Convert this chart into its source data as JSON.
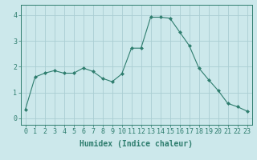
{
  "x": [
    0,
    1,
    2,
    3,
    4,
    5,
    6,
    7,
    8,
    9,
    10,
    11,
    12,
    13,
    14,
    15,
    16,
    17,
    18,
    19,
    20,
    21,
    22,
    23
  ],
  "y": [
    0.35,
    1.6,
    1.75,
    1.85,
    1.75,
    1.75,
    1.95,
    1.82,
    1.55,
    1.42,
    1.72,
    2.72,
    2.72,
    3.92,
    3.92,
    3.88,
    3.35,
    2.82,
    1.95,
    1.5,
    1.08,
    0.58,
    0.45,
    0.28
  ],
  "line_color": "#2e7d6e",
  "marker": "D",
  "marker_size": 2,
  "bg_color": "#cce8eb",
  "grid_color": "#aacdd2",
  "xlabel": "Humidex (Indice chaleur)",
  "xlabel_fontsize": 7,
  "tick_fontsize": 6,
  "ylim": [
    -0.25,
    4.4
  ],
  "xlim": [
    -0.5,
    23.5
  ],
  "yticks": [
    0,
    1,
    2,
    3,
    4
  ],
  "xticks": [
    0,
    1,
    2,
    3,
    4,
    5,
    6,
    7,
    8,
    9,
    10,
    11,
    12,
    13,
    14,
    15,
    16,
    17,
    18,
    19,
    20,
    21,
    22,
    23
  ]
}
